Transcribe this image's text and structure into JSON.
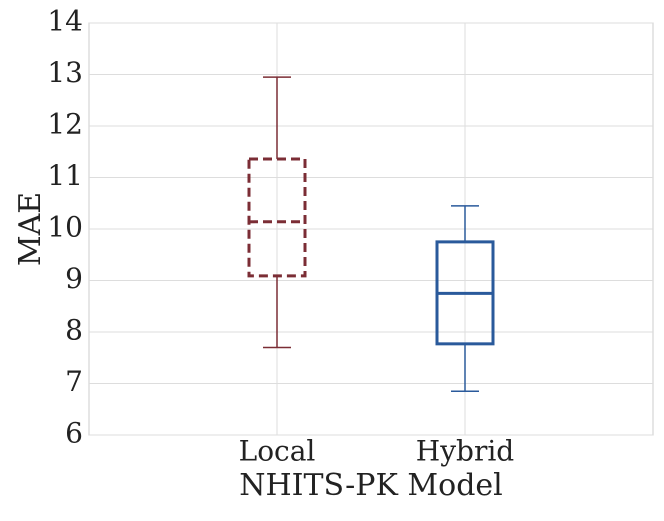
{
  "chart_data": {
    "type": "box",
    "x_label": "NHITS-PK Model",
    "y_label": "MAE",
    "categories": [
      "Local",
      "Hybrid"
    ],
    "boxes": [
      {
        "low": 7.7,
        "q1": 9.09,
        "median": 10.14,
        "q3": 11.36,
        "high": 12.95,
        "color": "#7b2d35",
        "line_style": "dashed"
      },
      {
        "low": 6.85,
        "q1": 7.77,
        "median": 8.75,
        "q3": 9.75,
        "high": 10.45,
        "color": "#2a5a9b",
        "line_style": "solid"
      }
    ],
    "ylim": [
      6,
      14
    ],
    "yticks": [
      6,
      7,
      8,
      9,
      10,
      11,
      12,
      13,
      14
    ],
    "grid": true
  }
}
